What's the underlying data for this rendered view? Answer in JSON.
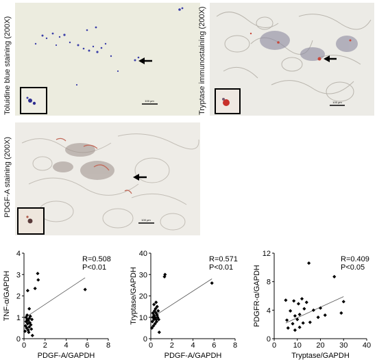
{
  "micrographs": [
    {
      "id": "toluidine",
      "label": "Toluidine blue staining (200X)",
      "scalebar": "100 μm"
    },
    {
      "id": "tryptase",
      "label": "Tryptase immunostaining (200X)",
      "scalebar": "100 μm"
    },
    {
      "id": "pdgfa",
      "label": "PDGF-A staining (200X)",
      "scalebar": "100 μm"
    }
  ],
  "chart_data": [
    {
      "type": "scatter",
      "xlabel": "PDGF-A/GAPDH",
      "ylabel": "TNF-α/GAPDH",
      "xlim": [
        0,
        8
      ],
      "ylim": [
        0,
        4
      ],
      "xticks": [
        0,
        2,
        4,
        6,
        8
      ],
      "yticks": [
        0,
        1,
        2,
        3,
        4
      ],
      "annotation": [
        "R=0.508",
        "P<0.01"
      ],
      "trendline": [
        [
          0,
          0.95
        ],
        [
          5.8,
          2.85
        ]
      ],
      "points": [
        [
          0.1,
          0.35
        ],
        [
          0.15,
          0.6
        ],
        [
          0.2,
          0.8
        ],
        [
          0.2,
          1.0
        ],
        [
          0.25,
          0.5
        ],
        [
          0.3,
          0.9
        ],
        [
          0.3,
          1.1
        ],
        [
          0.35,
          0.7
        ],
        [
          0.4,
          0.4
        ],
        [
          0.4,
          0.85
        ],
        [
          0.45,
          0.3
        ],
        [
          0.5,
          0.55
        ],
        [
          0.5,
          0.95
        ],
        [
          0.55,
          0.75
        ],
        [
          0.6,
          1.05
        ],
        [
          0.65,
          0.65
        ],
        [
          0.7,
          0.45
        ],
        [
          0.75,
          0.9
        ],
        [
          0.8,
          0.15
        ],
        [
          0.35,
          2.25
        ],
        [
          0.5,
          1.4
        ],
        [
          1.05,
          2.35
        ],
        [
          1.3,
          3.05
        ],
        [
          1.35,
          2.75
        ],
        [
          5.8,
          2.3
        ]
      ]
    },
    {
      "type": "scatter",
      "xlabel": "PDGF-A/GAPDH",
      "ylabel": "Tryptase/GAPDH",
      "xlim": [
        0,
        8
      ],
      "ylim": [
        0,
        40
      ],
      "xticks": [
        0,
        2,
        4,
        6,
        8
      ],
      "yticks": [
        0,
        10,
        20,
        30,
        40
      ],
      "annotation": [
        "R=0.571",
        "P<0.01"
      ],
      "trendline": [
        [
          0,
          9.5
        ],
        [
          5.8,
          28
        ]
      ],
      "points": [
        [
          0.1,
          5
        ],
        [
          0.15,
          8
        ],
        [
          0.2,
          10
        ],
        [
          0.2,
          12
        ],
        [
          0.25,
          6
        ],
        [
          0.3,
          9
        ],
        [
          0.3,
          11
        ],
        [
          0.35,
          13
        ],
        [
          0.4,
          7
        ],
        [
          0.4,
          10
        ],
        [
          0.45,
          14
        ],
        [
          0.5,
          9
        ],
        [
          0.5,
          12
        ],
        [
          0.55,
          8
        ],
        [
          0.6,
          11
        ],
        [
          0.65,
          10
        ],
        [
          0.7,
          13
        ],
        [
          0.75,
          9
        ],
        [
          0.8,
          3
        ],
        [
          0.3,
          16
        ],
        [
          0.5,
          17
        ],
        [
          0.6,
          15
        ],
        [
          1.3,
          29
        ],
        [
          1.35,
          30
        ],
        [
          5.8,
          26
        ]
      ]
    },
    {
      "type": "scatter",
      "xlabel": "Tryptase/GAPDH",
      "ylabel": "PDGFR-α/GAPDH",
      "xlim": [
        0,
        40
      ],
      "ylim": [
        0,
        12
      ],
      "xticks": [
        0,
        10,
        20,
        30,
        40
      ],
      "yticks": [
        0,
        4,
        8,
        12
      ],
      "annotation": [
        "R=0.409",
        "P<0.05"
      ],
      "trendline": [
        [
          5,
          2.2
        ],
        [
          30,
          5.9
        ]
      ],
      "points": [
        [
          5,
          5.4
        ],
        [
          5.5,
          2.6
        ],
        [
          6,
          1.5
        ],
        [
          7,
          3.9
        ],
        [
          8,
          2.1
        ],
        [
          8.5,
          5.3
        ],
        [
          9,
          3.2
        ],
        [
          9,
          1.2
        ],
        [
          10,
          2.7
        ],
        [
          10.5,
          4.9
        ],
        [
          11,
          1.6
        ],
        [
          11,
          3.4
        ],
        [
          12,
          5.6
        ],
        [
          12.5,
          2.2
        ],
        [
          13,
          4.2
        ],
        [
          14,
          5.1
        ],
        [
          15,
          10.6
        ],
        [
          15.5,
          2.3
        ],
        [
          17,
          4.0
        ],
        [
          19,
          3.0
        ],
        [
          20,
          4.3
        ],
        [
          22,
          3.3
        ],
        [
          26,
          8.7
        ],
        [
          29,
          3.6
        ],
        [
          30,
          5.2
        ]
      ]
    }
  ]
}
